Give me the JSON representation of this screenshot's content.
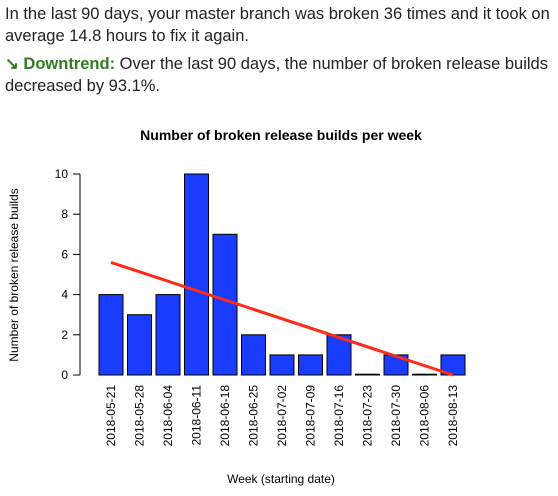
{
  "summary": {
    "text": "In the last 90 days, your master branch was broken 36 times and it took on average 14.8 hours to fix it again."
  },
  "trend": {
    "arrow": "↘",
    "label": "Downtrend:",
    "text": " Over the last 90 days, the number of broken release builds decreased by 93.1%.",
    "color": "#2e7d1e"
  },
  "chart_data": {
    "type": "bar",
    "title": "Number of broken release builds per week",
    "xlabel": "Week (starting date)",
    "ylabel": "Number of broken release builds",
    "categories": [
      "2018-05-21",
      "2018-05-28",
      "2018-06-04",
      "2018-06-11",
      "2018-06-18",
      "2018-06-25",
      "2018-07-02",
      "2018-07-09",
      "2018-07-16",
      "2018-07-23",
      "2018-07-30",
      "2018-08-06",
      "2018-08-13"
    ],
    "values": [
      4,
      3,
      4,
      10,
      7,
      2,
      1,
      1,
      2,
      0,
      1,
      0,
      1
    ],
    "ylim": [
      0,
      10
    ],
    "yticks": [
      0,
      2,
      4,
      6,
      8,
      10
    ],
    "bar_color": "#1a3cff",
    "trendline": {
      "start": 5.6,
      "end": 0.0,
      "color": "#ff2a1a"
    },
    "grid": false
  }
}
